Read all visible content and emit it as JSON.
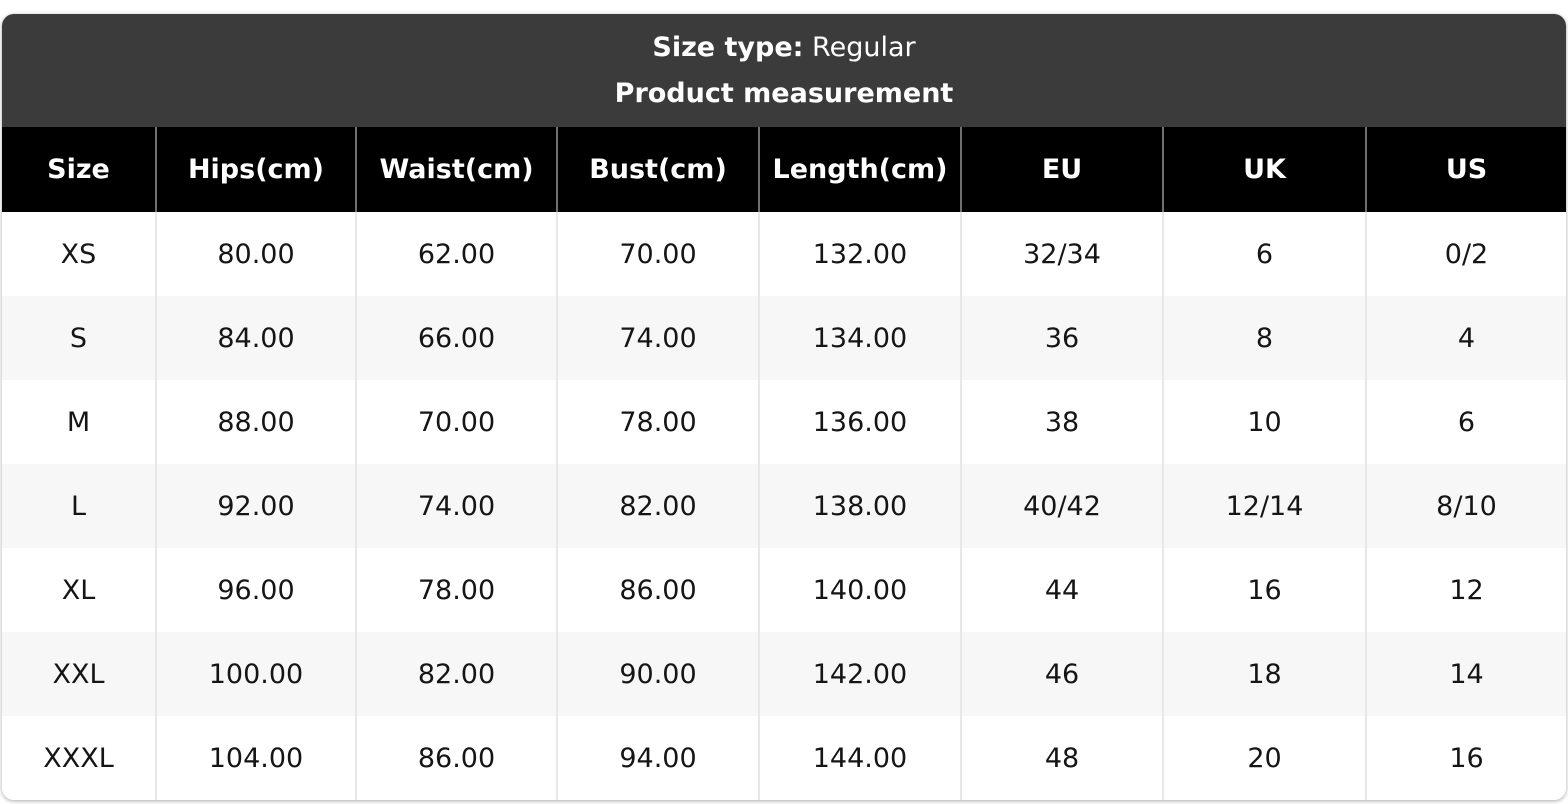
{
  "header": {
    "size_type_label": "Size type:",
    "size_type_value": " Regular",
    "subtitle": "Product measurement"
  },
  "table": {
    "columns": [
      "Size",
      "Hips(cm)",
      "Waist(cm)",
      "Bust(cm)",
      "Length(cm)",
      "EU",
      "UK",
      "US"
    ],
    "rows": [
      [
        "XS",
        "80.00",
        "62.00",
        "70.00",
        "132.00",
        "32/34",
        "6",
        "0/2"
      ],
      [
        "S",
        "84.00",
        "66.00",
        "74.00",
        "134.00",
        "36",
        "8",
        "4"
      ],
      [
        "M",
        "88.00",
        "70.00",
        "78.00",
        "136.00",
        "38",
        "10",
        "6"
      ],
      [
        "L",
        "92.00",
        "74.00",
        "82.00",
        "138.00",
        "40/42",
        "12/14",
        "8/10"
      ],
      [
        "XL",
        "96.00",
        "78.00",
        "86.00",
        "140.00",
        "44",
        "16",
        "12"
      ],
      [
        "XXL",
        "100.00",
        "82.00",
        "90.00",
        "142.00",
        "46",
        "18",
        "14"
      ],
      [
        "XXXL",
        "104.00",
        "86.00",
        "94.00",
        "144.00",
        "48",
        "20",
        "16"
      ]
    ]
  },
  "colors": {
    "title_bar_bg": "#3b3b3b",
    "header_bg": "#000000",
    "header_text": "#ffffff",
    "header_divider": "#6f6f6f",
    "row_bg": "#ffffff",
    "row_alt_bg": "#f7f7f7",
    "body_text": "#151515",
    "body_divider": "#e7e7e7"
  }
}
